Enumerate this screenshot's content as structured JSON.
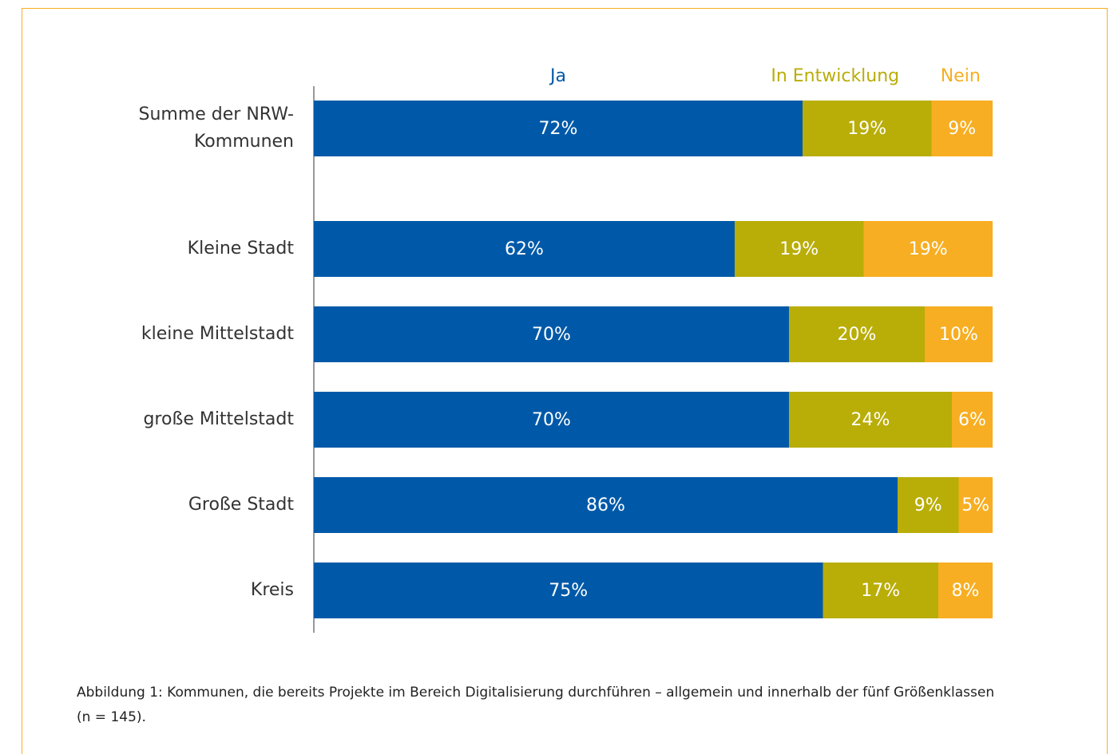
{
  "chart_data": {
    "type": "stacked-bar-horizontal",
    "categories": [
      "Summe der NRW-Kommunen",
      "Kleine Stadt",
      "kleine Mittelstadt",
      "große Mittelstadt",
      "Große Stadt",
      "Kreis"
    ],
    "series": [
      {
        "name": "Ja",
        "color": "#0059a8",
        "values": [
          72,
          62,
          70,
          70,
          86,
          75
        ],
        "value_labels": [
          "72%",
          "62%",
          "70%",
          "70%",
          "86%",
          "75%"
        ]
      },
      {
        "name": "In Entwicklung",
        "color": "#b9ad08",
        "values": [
          19,
          19,
          20,
          24,
          9,
          17
        ],
        "value_labels": [
          "19%",
          "19%",
          "20%",
          "24%",
          "9%",
          "17%"
        ]
      },
      {
        "name": "Nein",
        "color": "#f7ae22",
        "values": [
          9,
          19,
          10,
          6,
          5,
          8
        ],
        "value_labels": [
          "9%",
          "19%",
          "10%",
          "6%",
          "5%",
          "8%"
        ]
      }
    ],
    "xlim": [
      0,
      100
    ],
    "caption": "Abbildung 1: Kommunen, die bereits Projekte im Bereich Digitalisierung durchführen – allgemein und innerhalb der fünf Größenklassen (n = 145)."
  }
}
